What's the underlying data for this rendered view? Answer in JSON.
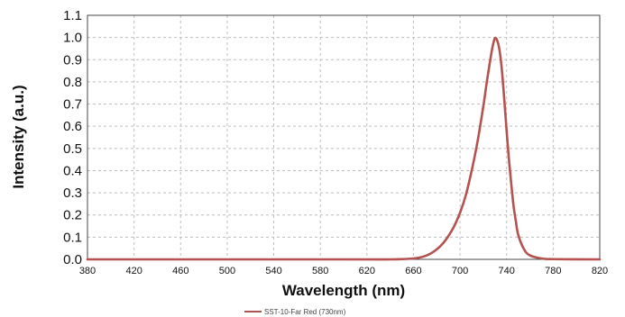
{
  "chart_data": {
    "type": "line",
    "xlabel": "Wavelength (nm)",
    "ylabel": "Intensity (a.u.)",
    "xlim": [
      380,
      820
    ],
    "ylim": [
      0.0,
      1.1
    ],
    "x_ticks": [
      "380",
      "420",
      "460",
      "500",
      "540",
      "580",
      "620",
      "660",
      "700",
      "740",
      "780",
      "820"
    ],
    "y_ticks": [
      "0.0",
      "0.1",
      "0.2",
      "0.3",
      "0.4",
      "0.5",
      "0.6",
      "0.7",
      "0.8",
      "0.9",
      "1.0",
      "1.1"
    ],
    "grid": true,
    "legend_position": "bottom",
    "series": [
      {
        "name": "SST-10-Far Red (730nm)",
        "color": "#b5524f",
        "x": [
          380,
          600,
          640,
          650,
          660,
          665,
          670,
          675,
          680,
          685,
          690,
          695,
          700,
          705,
          710,
          715,
          720,
          723,
          726,
          728,
          730,
          732,
          734,
          736,
          738,
          740,
          742,
          744,
          746,
          748,
          750,
          755,
          760,
          770,
          780,
          820
        ],
        "y": [
          0.0,
          0.0,
          0.0,
          0.001,
          0.004,
          0.008,
          0.015,
          0.027,
          0.045,
          0.07,
          0.105,
          0.15,
          0.21,
          0.29,
          0.4,
          0.53,
          0.69,
          0.8,
          0.9,
          0.96,
          0.997,
          0.985,
          0.94,
          0.85,
          0.72,
          0.58,
          0.45,
          0.34,
          0.24,
          0.17,
          0.11,
          0.045,
          0.018,
          0.004,
          0.001,
          0.0
        ]
      }
    ]
  }
}
